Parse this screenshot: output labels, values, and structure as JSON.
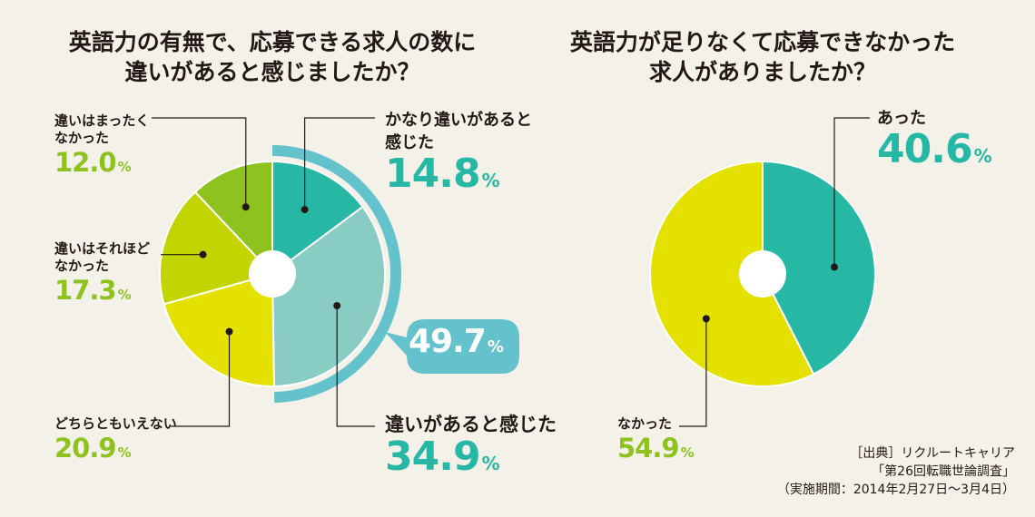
{
  "colors": {
    "teal": "#27b7a5",
    "light_teal": "#88ccc3",
    "bracket": "#64c2cd",
    "yellow": "#e4e100",
    "yellow_green": "#c2d500",
    "green": "#8ec31f",
    "background": "#f4f1e8"
  },
  "left": {
    "title_line1": "英語力の有無で、応募できる求人の数に",
    "title_line2": "違いがあると感じましたか？",
    "group_value": "49.7",
    "labels": {
      "a_line1": "かなり違いがあると",
      "a_line2": "感じた",
      "b": "違いがあると感じた",
      "c": "どちらともいえない",
      "d_line1": "違いはそれほど",
      "d_line2": "なかった",
      "e_line1": "違いはまったく",
      "e_line2": "なかった"
    }
  },
  "right": {
    "title_line1": "英語力が足りなくて応募できなかった",
    "title_line2": "求人がありましたか？",
    "labels": {
      "a": "あった",
      "b": "なかった"
    }
  },
  "pct_sign": "%",
  "source": {
    "line1": "［出典］リクルートキャリア",
    "line2": "「第26回転職世論調査」",
    "line3": "（実施期間：2014年2月27日～3月4日）"
  },
  "chart_data": [
    {
      "type": "pie",
      "title": "英語力の有無で、応募できる求人の数に違いがあると感じましたか？",
      "categories": [
        "かなり違いがあると感じた",
        "違いがあると感じた",
        "どちらともいえない",
        "違いはそれほどなかった",
        "違いはまったくなかった"
      ],
      "values": [
        14.8,
        34.9,
        20.9,
        17.3,
        12.0
      ],
      "value_labels": [
        "14.8",
        "34.9",
        "20.9",
        "17.3",
        "12.0"
      ],
      "colors": [
        "#27b7a5",
        "#88ccc3",
        "#e4e100",
        "#c2d500",
        "#8ec31f"
      ],
      "annotation": {
        "text": "49.7%",
        "covers": [
          "かなり違いがあると感じた",
          "違いがあると感じた"
        ]
      }
    },
    {
      "type": "pie",
      "title": "英語力が足りなくて応募できなかった求人がありましたか？",
      "categories": [
        "あった",
        "なかった"
      ],
      "values": [
        40.6,
        54.9
      ],
      "value_labels": [
        "40.6",
        "54.9"
      ],
      "colors": [
        "#27b7a5",
        "#e4e100"
      ]
    }
  ]
}
